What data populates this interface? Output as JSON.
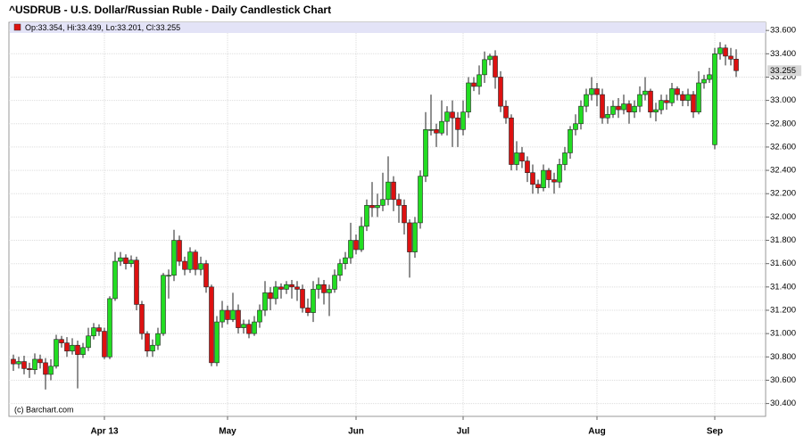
{
  "chart_data": {
    "type": "candlestick",
    "title": "^USDRUB - U.S. Dollar/Russian Ruble - Daily Candlestick Chart",
    "legend_text": "Op:33.354, Hi:33.439, Lo:33.201, Cl:33.255",
    "last_label": "33.255",
    "credit": "(c) Barchart.com",
    "up_color": "#22dd22",
    "down_color": "#dd1111",
    "grid": true,
    "ylim": [
      30.29,
      33.67
    ],
    "yticks": [
      {
        "value": 30.4,
        "label": "30.400"
      },
      {
        "value": 30.6,
        "label": "30.600"
      },
      {
        "value": 30.8,
        "label": "30.800"
      },
      {
        "value": 31.0,
        "label": "31.000"
      },
      {
        "value": 31.2,
        "label": "31.200"
      },
      {
        "value": 31.4,
        "label": "31.400"
      },
      {
        "value": 31.6,
        "label": "31.600"
      },
      {
        "value": 31.8,
        "label": "31.800"
      },
      {
        "value": 32.0,
        "label": "32.000"
      },
      {
        "value": 32.2,
        "label": "32.200"
      },
      {
        "value": 32.4,
        "label": "32.400"
      },
      {
        "value": 32.6,
        "label": "32.600"
      },
      {
        "value": 32.8,
        "label": "32.800"
      },
      {
        "value": 33.0,
        "label": "33.000"
      },
      {
        "value": 33.2,
        "label": "33.200"
      },
      {
        "value": 33.4,
        "label": "33.400"
      },
      {
        "value": 33.6,
        "label": "33.600"
      }
    ],
    "categories": [
      null,
      null,
      null,
      null,
      null,
      null,
      null,
      null,
      null,
      null,
      null,
      null,
      null,
      null,
      null,
      null,
      null,
      "Apr 13",
      null,
      null,
      null,
      null,
      null,
      null,
      null,
      null,
      null,
      null,
      null,
      null,
      null,
      null,
      null,
      null,
      null,
      null,
      null,
      null,
      null,
      null,
      "May",
      null,
      null,
      null,
      null,
      null,
      null,
      null,
      null,
      null,
      null,
      null,
      null,
      null,
      null,
      null,
      null,
      null,
      null,
      null,
      null,
      null,
      null,
      null,
      "Jun",
      null,
      null,
      null,
      null,
      null,
      null,
      null,
      null,
      null,
      null,
      null,
      null,
      null,
      null,
      null,
      null,
      null,
      null,
      null,
      "Jul",
      null,
      null,
      null,
      null,
      null,
      null,
      null,
      null,
      null,
      null,
      null,
      null,
      null,
      null,
      null,
      null,
      null,
      null,
      null,
      null,
      null,
      null,
      null,
      null,
      "Aug",
      null,
      null,
      null,
      null,
      null,
      null,
      null,
      null,
      null,
      null,
      null,
      null,
      null,
      null,
      null,
      null,
      null,
      null,
      null,
      null,
      null,
      "Sep",
      null,
      null,
      null,
      null
    ],
    "open": [
      30.78,
      30.74,
      30.76,
      30.7,
      30.69,
      30.78,
      30.75,
      30.65,
      30.72,
      30.95,
      30.92,
      30.85,
      30.9,
      30.82,
      30.88,
      30.98,
      31.05,
      31.02,
      30.8,
      31.3,
      31.62,
      31.65,
      31.6,
      31.63,
      31.25,
      31.0,
      30.85,
      30.9,
      31.0,
      31.5,
      31.5,
      31.8,
      31.62,
      31.55,
      31.7,
      31.55,
      31.6,
      31.4,
      30.75,
      31.1,
      31.2,
      31.12,
      31.2,
      31.05,
      31.08,
      31.0,
      31.1,
      31.2,
      31.35,
      31.3,
      31.4,
      31.38,
      31.42,
      31.4,
      31.38,
      31.22,
      31.18,
      31.38,
      31.42,
      31.35,
      31.38,
      31.5,
      31.6,
      31.65,
      31.8,
      31.72,
      31.92,
      32.1,
      32.08,
      32.1,
      32.15,
      32.3,
      32.15,
      32.1,
      31.95,
      31.7,
      31.95,
      32.35,
      32.75,
      32.75,
      32.72,
      32.82,
      32.9,
      32.85,
      32.75,
      32.9,
      33.15,
      33.12,
      33.22,
      33.35,
      33.38,
      33.2,
      32.95,
      32.85,
      32.45,
      32.55,
      32.48,
      32.38,
      32.28,
      32.25,
      32.4,
      32.32,
      32.3,
      32.45,
      32.55,
      32.75,
      32.8,
      32.95,
      33.05,
      33.1,
      33.05,
      32.85,
      32.88,
      32.95,
      32.92,
      32.97,
      32.9,
      32.95,
      33.05,
      33.08,
      32.9,
      32.92,
      33.0,
      32.98,
      33.1,
      33.05,
      33.0,
      33.05,
      32.9,
      33.15,
      33.18,
      32.62,
      33.4,
      33.45,
      33.38,
      33.354
    ],
    "high": [
      30.82,
      30.8,
      30.81,
      30.75,
      30.83,
      30.82,
      30.79,
      30.78,
      30.99,
      30.98,
      30.97,
      30.96,
      30.94,
      30.92,
      31.05,
      31.09,
      31.08,
      31.05,
      31.32,
      31.7,
      31.7,
      31.68,
      31.67,
      31.66,
      31.28,
      31.02,
      30.95,
      31.05,
      31.52,
      31.55,
      31.89,
      31.84,
      31.66,
      31.74,
      31.72,
      31.66,
      31.63,
      31.42,
      31.15,
      31.28,
      31.24,
      31.35,
      31.25,
      31.12,
      31.12,
      31.15,
      31.25,
      31.45,
      31.4,
      31.45,
      31.43,
      31.45,
      31.46,
      31.45,
      31.42,
      31.3,
      31.45,
      31.48,
      31.46,
      31.42,
      31.55,
      31.64,
      31.7,
      31.95,
      31.85,
      32.0,
      32.15,
      32.3,
      32.2,
      32.38,
      32.52,
      32.35,
      32.2,
      32.15,
      31.98,
      32.0,
      32.4,
      32.9,
      33.05,
      32.8,
      33.0,
      32.95,
      33.0,
      32.9,
      33.0,
      33.2,
      33.2,
      33.3,
      33.42,
      33.4,
      33.43,
      33.25,
      33.0,
      32.88,
      32.65,
      32.6,
      32.52,
      32.45,
      32.32,
      32.45,
      32.42,
      32.38,
      32.5,
      32.6,
      32.78,
      32.88,
      33.0,
      33.1,
      33.2,
      33.15,
      33.1,
      32.95,
      33.0,
      33.02,
      33.05,
      33.0,
      33.0,
      33.12,
      33.2,
      33.1,
      32.98,
      33.05,
      33.05,
      33.15,
      33.12,
      33.08,
      33.1,
      33.08,
      33.25,
      33.22,
      33.28,
      33.45,
      33.5,
      33.48,
      33.45,
      33.439
    ],
    "low": [
      30.68,
      30.7,
      30.65,
      30.62,
      30.65,
      30.7,
      30.52,
      30.6,
      30.7,
      30.88,
      30.8,
      30.82,
      30.53,
      30.79,
      30.85,
      30.95,
      30.98,
      30.78,
      30.78,
      31.28,
      31.58,
      31.55,
      31.57,
      31.2,
      30.95,
      30.8,
      30.8,
      30.86,
      30.98,
      31.3,
      31.45,
      31.58,
      31.5,
      31.52,
      31.5,
      31.5,
      31.35,
      30.72,
      30.72,
      31.05,
      31.08,
      31.1,
      31.0,
      31.0,
      30.96,
      30.98,
      31.05,
      31.15,
      31.2,
      31.25,
      31.3,
      31.34,
      31.3,
      31.28,
      31.18,
      31.15,
      31.1,
      31.3,
      31.25,
      31.15,
      31.35,
      31.45,
      31.55,
      31.6,
      31.68,
      31.7,
      31.88,
      32.0,
      32.0,
      32.05,
      32.1,
      32.05,
      31.95,
      31.85,
      31.48,
      31.65,
      31.9,
      32.3,
      32.7,
      32.6,
      32.7,
      32.7,
      32.6,
      32.6,
      32.7,
      32.85,
      33.08,
      33.05,
      33.15,
      33.3,
      33.1,
      32.9,
      32.8,
      32.4,
      32.4,
      32.42,
      32.3,
      32.2,
      32.2,
      32.22,
      32.25,
      32.2,
      32.25,
      32.4,
      32.5,
      32.7,
      32.75,
      32.9,
      33.0,
      32.95,
      32.8,
      32.8,
      32.85,
      32.85,
      32.88,
      32.8,
      32.85,
      32.9,
      33.0,
      32.85,
      32.82,
      32.88,
      32.92,
      32.95,
      33.0,
      32.95,
      32.95,
      32.85,
      32.88,
      33.1,
      33.15,
      32.58,
      33.35,
      33.3,
      33.3,
      33.201
    ],
    "close": [
      30.74,
      30.76,
      30.7,
      30.69,
      30.78,
      30.75,
      30.65,
      30.72,
      30.95,
      30.92,
      30.85,
      30.9,
      30.82,
      30.88,
      30.98,
      31.05,
      31.02,
      30.8,
      31.3,
      31.62,
      31.65,
      31.6,
      31.63,
      31.25,
      31.0,
      30.85,
      30.9,
      31.0,
      31.5,
      31.5,
      31.8,
      31.62,
      31.55,
      31.7,
      31.55,
      31.6,
      31.4,
      30.75,
      31.1,
      31.2,
      31.12,
      31.2,
      31.05,
      31.08,
      31.0,
      31.1,
      31.2,
      31.35,
      31.3,
      31.4,
      31.38,
      31.42,
      31.4,
      31.38,
      31.22,
      31.18,
      31.38,
      31.42,
      31.35,
      31.38,
      31.5,
      31.6,
      31.65,
      31.8,
      31.72,
      31.92,
      32.1,
      32.08,
      32.1,
      32.15,
      32.3,
      32.15,
      32.1,
      31.95,
      31.7,
      31.95,
      32.35,
      32.75,
      32.75,
      32.72,
      32.82,
      32.9,
      32.85,
      32.75,
      32.9,
      33.15,
      33.12,
      33.22,
      33.35,
      33.38,
      33.2,
      32.95,
      32.85,
      32.45,
      32.55,
      32.48,
      32.38,
      32.28,
      32.25,
      32.4,
      32.32,
      32.3,
      32.45,
      32.55,
      32.75,
      32.8,
      32.95,
      33.05,
      33.1,
      33.05,
      32.85,
      32.88,
      32.95,
      32.92,
      32.97,
      32.9,
      32.95,
      33.05,
      33.08,
      32.9,
      32.92,
      33.0,
      32.98,
      33.1,
      33.05,
      33.0,
      33.05,
      32.9,
      33.15,
      33.18,
      33.22,
      33.4,
      33.45,
      33.38,
      33.354,
      33.255
    ]
  }
}
